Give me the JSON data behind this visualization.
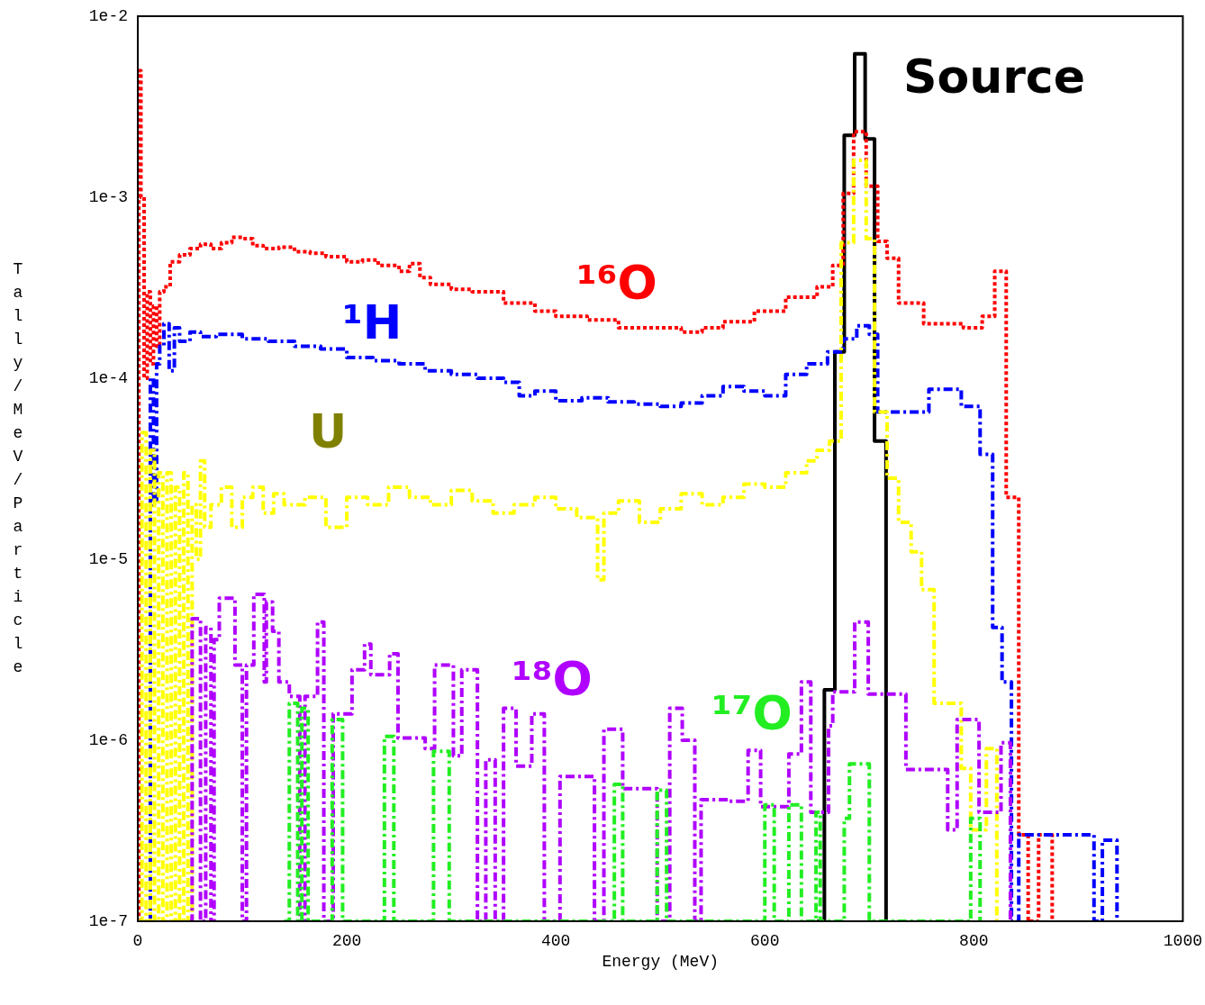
{
  "chart_data": {
    "type": "step",
    "xlabel": "Energy (MeV)",
    "ylabel": "Tally/MeV/Particle",
    "log": true,
    "grid": false,
    "legend": false,
    "xlim": [
      0,
      1000
    ],
    "xticks": [
      0,
      200,
      400,
      600,
      800,
      1000
    ],
    "ylim": [
      1e-07,
      0.01
    ],
    "yticks": [
      {
        "value": 1e-07,
        "label": "1e-7"
      },
      {
        "value": 1e-06,
        "label": "1e-6"
      },
      {
        "value": 1e-05,
        "label": "1e-5"
      },
      {
        "value": 0.0001,
        "label": "1e-4"
      },
      {
        "value": 0.001,
        "label": "1e-3"
      },
      {
        "value": 0.01,
        "label": "1e-2"
      }
    ],
    "series": [
      {
        "name": "Source",
        "color": "#000000",
        "line_style": "solid",
        "x": [
          650,
          657,
          667,
          676,
          686,
          696,
          705,
          716
        ],
        "values": [
          1e-07,
          1.9e-06,
          0.00014,
          0.0022,
          0.0062,
          0.0021,
          4.5e-05,
          1e-07
        ]
      },
      {
        "name": "¹⁶O",
        "color": "#ff0000",
        "line_style": "dotted",
        "x": [
          0,
          1,
          3,
          6,
          9,
          12,
          15,
          18,
          21,
          25,
          31,
          40,
          50,
          60,
          70,
          80,
          90,
          100,
          110,
          120,
          135,
          150,
          165,
          180,
          200,
          215,
          230,
          250,
          260,
          270,
          280,
          300,
          320,
          350,
          380,
          400,
          430,
          460,
          490,
          520,
          540,
          560,
          590,
          620,
          650,
          665,
          675,
          685,
          697,
          708,
          717,
          728,
          752,
          790,
          808,
          820,
          831,
          843,
          852,
          862,
          875
        ],
        "values": [
          1e-07,
          0.005,
          0.001,
          0.0001,
          0.0003,
          0.00012,
          0.00025,
          0.00015,
          0.0003,
          0.00032,
          0.00044,
          0.00048,
          0.00052,
          0.00055,
          0.00052,
          0.00056,
          0.0006,
          0.00059,
          0.00054,
          0.00052,
          0.00053,
          0.0005,
          0.00049,
          0.00047,
          0.00044,
          0.00045,
          0.00042,
          0.00039,
          0.00043,
          0.00036,
          0.00033,
          0.00031,
          0.0003,
          0.00026,
          0.000235,
          0.00022,
          0.00021,
          0.00019,
          0.00019,
          0.00018,
          0.00019,
          0.000205,
          0.000235,
          0.00028,
          0.00032,
          0.00042,
          0.00105,
          0.0023,
          0.00115,
          0.00057,
          0.00046,
          0.00026,
          0.0002,
          0.00019,
          0.00022,
          0.00039,
          2.2e-05,
          3e-07,
          1e-07,
          3e-07,
          1e-07
        ]
      },
      {
        "name": "¹H",
        "color": "#0000ff",
        "line_style": "dashed",
        "x": [
          10,
          12,
          15,
          18,
          21,
          25,
          30,
          35,
          40,
          50,
          60,
          75,
          100,
          125,
          150,
          175,
          200,
          225,
          250,
          275,
          300,
          325,
          350,
          365,
          380,
          400,
          425,
          450,
          475,
          500,
          520,
          540,
          560,
          580,
          600,
          620,
          640,
          660,
          675,
          688,
          700,
          708,
          757,
          788,
          806,
          818,
          827,
          836,
          843,
          915,
          923,
          937
        ],
        "values": [
          1e-07,
          0.0001,
          2e-05,
          0.00012,
          0.00015,
          0.0002,
          0.00011,
          0.00019,
          0.00016,
          0.00018,
          0.00017,
          0.000175,
          0.000165,
          0.00016,
          0.00015,
          0.000145,
          0.00013,
          0.000125,
          0.00012,
          0.00011,
          0.000105,
          0.0001,
          9.5e-05,
          8e-05,
          8.5e-05,
          7.5e-05,
          7.8e-05,
          7.4e-05,
          7.2e-05,
          7e-05,
          7.3e-05,
          8e-05,
          9e-05,
          8.5e-05,
          8e-05,
          0.000105,
          0.00012,
          0.00014,
          0.000165,
          0.000195,
          0.000175,
          6.5e-05,
          8.7e-05,
          7e-05,
          3.8e-05,
          4.2e-06,
          2.1e-06,
          1e-07,
          3e-07,
          1e-07,
          2.8e-07,
          1e-07
        ]
      },
      {
        "name": "U",
        "color": "#ffff00",
        "line_style": "dashed",
        "x": [
          0,
          4,
          8,
          12,
          16,
          20,
          24,
          28,
          32,
          36,
          40,
          44,
          48,
          52,
          56,
          60,
          64,
          70,
          80,
          90,
          100,
          110,
          120,
          130,
          140,
          160,
          180,
          200,
          220,
          240,
          260,
          280,
          300,
          320,
          340,
          360,
          380,
          400,
          420,
          440,
          446,
          460,
          480,
          500,
          520,
          540,
          560,
          580,
          600,
          620,
          640,
          650,
          662,
          673,
          685,
          697,
          705,
          717,
          728,
          740,
          750,
          762,
          788,
          797,
          812,
          822
        ],
        "values": [
          1e-07,
          5e-05,
          1e-07,
          4e-05,
          1e-07,
          3e-05,
          1e-07,
          3e-05,
          1e-07,
          2.5e-05,
          1e-07,
          3e-05,
          1e-07,
          2e-05,
          1e-05,
          3.5e-05,
          1.5e-05,
          2e-05,
          2.5e-05,
          1.5e-05,
          2.2e-05,
          2.5e-05,
          1.8e-05,
          2.3e-05,
          2e-05,
          2.2e-05,
          1.5e-05,
          2.2e-05,
          2e-05,
          2.5e-05,
          2.2e-05,
          2e-05,
          2.4e-05,
          2.1e-05,
          1.8e-05,
          2e-05,
          2.2e-05,
          1.9e-05,
          1.7e-05,
          7.7e-06,
          1.8e-05,
          2.1e-05,
          1.6e-05,
          1.9e-05,
          2.3e-05,
          2e-05,
          2.2e-05,
          2.6e-05,
          2.5e-05,
          3e-05,
          3.5e-05,
          4e-05,
          4.5e-05,
          0.00056,
          0.0016,
          0.00059,
          6.5e-05,
          2.8e-05,
          1.6e-05,
          1.1e-05,
          6.8e-06,
          1.6e-06,
          7e-07,
          3.2e-07,
          9e-07,
          1e-07
        ]
      },
      {
        "name": "¹⁸O",
        "color": "#b000ff",
        "line_style": "dashed",
        "x": [
          50,
          52,
          60,
          65,
          70,
          73,
          78,
          93,
          100,
          104,
          111,
          121,
          123,
          129,
          135,
          145,
          155,
          160,
          172,
          178,
          187,
          205,
          217,
          223,
          241,
          249,
          275,
          284,
          302,
          310,
          325,
          333,
          342,
          350,
          362,
          377,
          389,
          404,
          437,
          446,
          464,
          497,
          509,
          521,
          533,
          539,
          566,
          584,
          596,
          623,
          635,
          644,
          661,
          665,
          686,
          699,
          735,
          775,
          784,
          805,
          826,
          835
        ],
        "values": [
          1e-07,
          4.7e-06,
          1e-07,
          4.2e-06,
          1e-07,
          3.6e-06,
          6.1e-06,
          2.6e-06,
          1e-07,
          2.6e-06,
          6.4e-06,
          2.1e-06,
          5.8e-06,
          4e-06,
          2.1e-06,
          1.75e-06,
          1e-07,
          1.75e-06,
          4.5e-06,
          1e-07,
          1.4e-06,
          2.45e-06,
          3.4e-06,
          2.3e-06,
          3e-06,
          1.03e-06,
          9e-07,
          2.6e-06,
          8.2e-07,
          2.45e-06,
          1e-07,
          7.8e-07,
          1e-07,
          1.5e-06,
          7.2e-07,
          1.4e-06,
          1e-07,
          6.3e-07,
          1e-07,
          1.15e-06,
          5.4e-07,
          1e-07,
          1.5e-06,
          1e-06,
          1e-07,
          4.7e-07,
          4.6e-07,
          8.8e-07,
          4.3e-07,
          8.4e-07,
          2.1e-06,
          4e-07,
          1.2e-06,
          1.85e-06,
          4.5e-06,
          1.8e-06,
          6.9e-07,
          3.2e-07,
          1.3e-06,
          4e-07,
          9.7e-07,
          1e-07
        ]
      },
      {
        "name": "¹⁷O",
        "color": "#22ee22",
        "line_style": "dashed",
        "x": [
          140,
          145,
          153,
          157,
          163,
          186,
          196,
          236,
          245,
          283,
          298,
          456,
          464,
          497,
          506,
          600,
          609,
          623,
          635,
          649,
          653,
          676,
          681,
          700,
          797,
          806
        ],
        "values": [
          1e-07,
          1.6e-06,
          1e-07,
          1.5e-06,
          1e-07,
          1.3e-06,
          1e-07,
          1.05e-06,
          1e-07,
          8.7e-07,
          1e-07,
          5.7e-07,
          1e-07,
          5.3e-07,
          1e-07,
          4.4e-07,
          1e-07,
          4.4e-07,
          1e-07,
          4e-07,
          1e-07,
          3.7e-07,
          7.4e-07,
          1e-07,
          3.7e-07,
          1e-07
        ]
      }
    ]
  }
}
